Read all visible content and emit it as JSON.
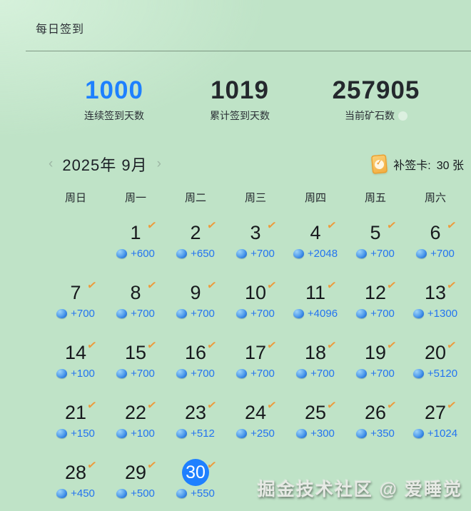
{
  "header": {
    "title": "每日签到"
  },
  "stats": [
    {
      "value": "1000",
      "label": "连续签到天数",
      "highlight": true
    },
    {
      "value": "1019",
      "label": "累计签到天数",
      "highlight": false
    },
    {
      "value": "257905",
      "label": "当前矿石数",
      "highlight": false
    }
  ],
  "calendar": {
    "month_label": "2025年 9月",
    "icons": {
      "prev": "‹",
      "next": "›",
      "check": "✓",
      "ore": "ore-gem",
      "resign_card": "ticket-card"
    },
    "resign_card": {
      "label": "补签卡:",
      "count": "30 张"
    },
    "weekdays": [
      "周日",
      "周一",
      "周二",
      "周三",
      "周四",
      "周五",
      "周六"
    ],
    "weeks": [
      [
        null,
        {
          "day": "1",
          "reward": "+600",
          "signed": true
        },
        {
          "day": "2",
          "reward": "+650",
          "signed": true
        },
        {
          "day": "3",
          "reward": "+700",
          "signed": true
        },
        {
          "day": "4",
          "reward": "+2048",
          "signed": true
        },
        {
          "day": "5",
          "reward": "+700",
          "signed": true
        },
        {
          "day": "6",
          "reward": "+700",
          "signed": true
        }
      ],
      [
        {
          "day": "7",
          "reward": "+700",
          "signed": true
        },
        {
          "day": "8",
          "reward": "+700",
          "signed": true
        },
        {
          "day": "9",
          "reward": "+700",
          "signed": true
        },
        {
          "day": "10",
          "reward": "+700",
          "signed": true
        },
        {
          "day": "11",
          "reward": "+4096",
          "signed": true
        },
        {
          "day": "12",
          "reward": "+700",
          "signed": true
        },
        {
          "day": "13",
          "reward": "+1300",
          "signed": true
        }
      ],
      [
        {
          "day": "14",
          "reward": "+100",
          "signed": true
        },
        {
          "day": "15",
          "reward": "+700",
          "signed": true
        },
        {
          "day": "16",
          "reward": "+700",
          "signed": true
        },
        {
          "day": "17",
          "reward": "+700",
          "signed": true
        },
        {
          "day": "18",
          "reward": "+700",
          "signed": true
        },
        {
          "day": "19",
          "reward": "+700",
          "signed": true
        },
        {
          "day": "20",
          "reward": "+5120",
          "signed": true
        }
      ],
      [
        {
          "day": "21",
          "reward": "+150",
          "signed": true
        },
        {
          "day": "22",
          "reward": "+100",
          "signed": true
        },
        {
          "day": "23",
          "reward": "+512",
          "signed": true
        },
        {
          "day": "24",
          "reward": "+250",
          "signed": true
        },
        {
          "day": "25",
          "reward": "+300",
          "signed": true
        },
        {
          "day": "26",
          "reward": "+350",
          "signed": true
        },
        {
          "day": "27",
          "reward": "+1024",
          "signed": true
        }
      ],
      [
        {
          "day": "28",
          "reward": "+450",
          "signed": true
        },
        {
          "day": "29",
          "reward": "+500",
          "signed": true
        },
        {
          "day": "30",
          "reward": "+550",
          "signed": true,
          "today": true
        },
        null,
        null,
        null,
        null
      ]
    ]
  },
  "watermark": "掘金技术社区 @ 爱睡觉",
  "colors": {
    "accent_blue": "#1e80ff",
    "check_orange": "#ed9b3c",
    "text_dark": "#24282d",
    "bg_green": "#bfe3c7"
  }
}
